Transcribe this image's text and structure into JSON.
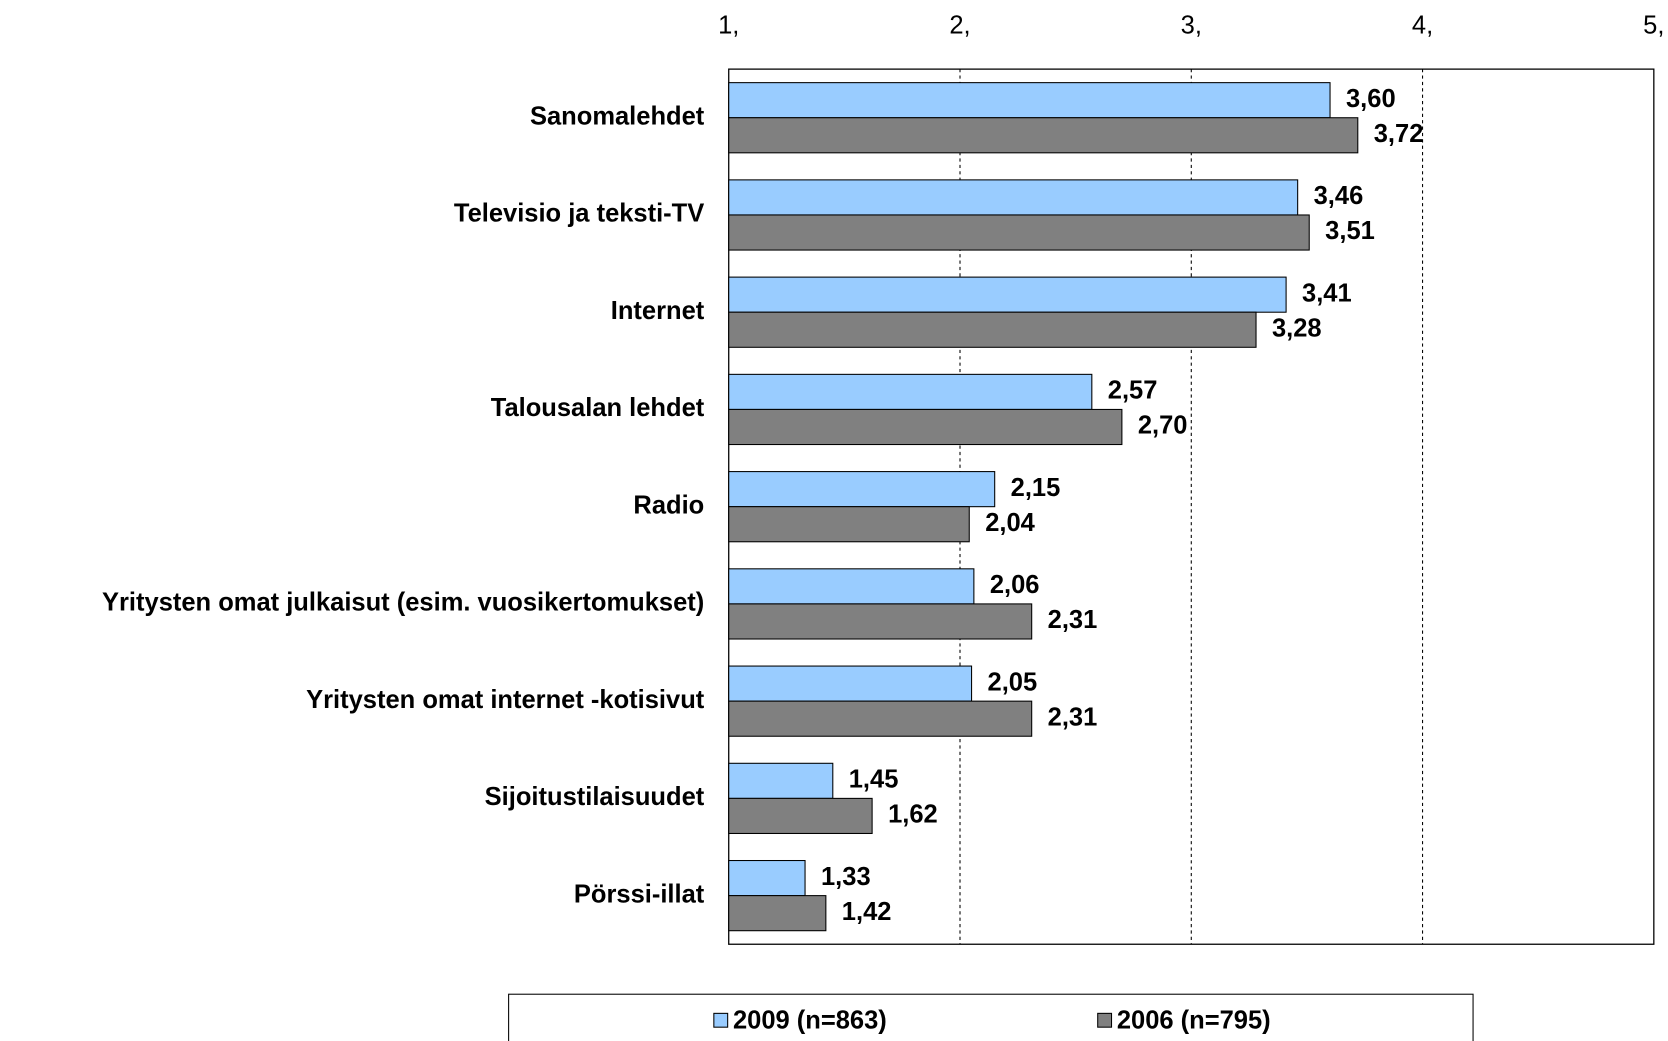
{
  "chart_data": {
    "type": "bar",
    "orientation": "horizontal",
    "categories": [
      "Sanomalehdet",
      "Televisio ja teksti-TV",
      "Internet",
      "Talousalan lehdet",
      "Radio",
      "Yritysten omat julkaisut (esim. vuosikertomukset)",
      "Yritysten omat internet -kotisivut",
      "Sijoitustilaisuudet",
      "Pörssi-illat"
    ],
    "series": [
      {
        "name": "2009 (n=863)",
        "color": "#99ccff",
        "values": [
          3.6,
          3.46,
          3.41,
          2.57,
          2.15,
          2.06,
          2.05,
          1.45,
          1.33
        ],
        "value_labels": [
          "3,60",
          "3,46",
          "3,41",
          "2,57",
          "2,15",
          "2,06",
          "2,05",
          "1,45",
          "1,33"
        ]
      },
      {
        "name": "2006 (n=795)",
        "color": "#808080",
        "values": [
          3.72,
          3.51,
          3.28,
          2.7,
          2.04,
          2.31,
          2.31,
          1.62,
          1.42
        ],
        "value_labels": [
          "3,72",
          "3,51",
          "3,28",
          "2,70",
          "2,04",
          "2,31",
          "2,31",
          "1,62",
          "1,42"
        ]
      }
    ],
    "xlim": [
      1,
      5
    ],
    "xticks": [
      {
        "value": 1,
        "label": "1,"
      },
      {
        "value": 2,
        "label": "2,"
      },
      {
        "value": 3,
        "label": "3,"
      },
      {
        "value": 4,
        "label": "4,"
      },
      {
        "value": 5,
        "label": "5,"
      }
    ],
    "grid": true,
    "legend": "bottom"
  }
}
